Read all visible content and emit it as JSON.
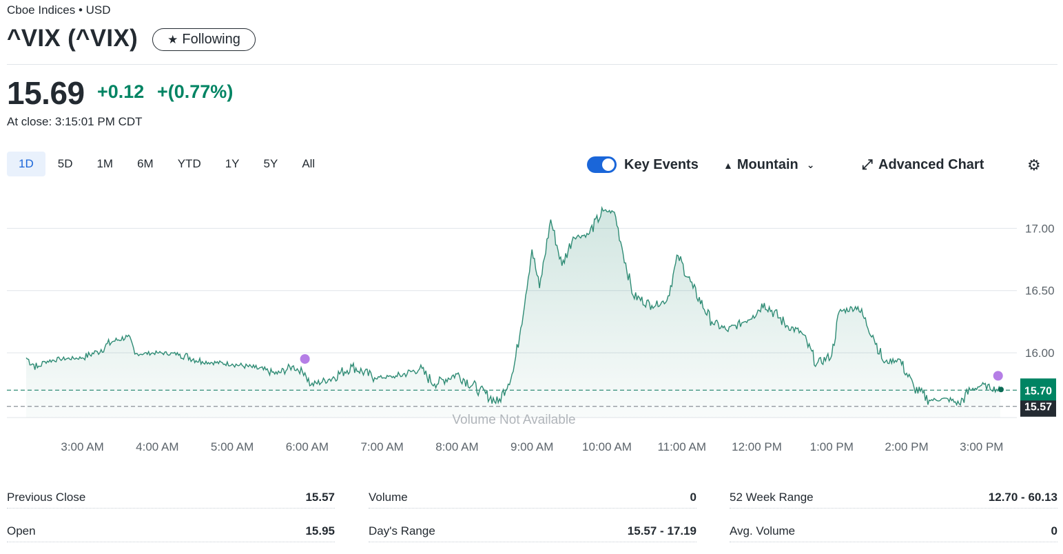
{
  "header": {
    "exchange": "Cboe Indices • USD",
    "title": "^VIX (^VIX)",
    "follow_label": "Following",
    "price": "15.69",
    "change": "+0.12",
    "change_pct": "+(0.77%)",
    "close_time": "At close: 3:15:01 PM CDT"
  },
  "ranges": [
    "1D",
    "5D",
    "1M",
    "6M",
    "YTD",
    "1Y",
    "5Y",
    "All"
  ],
  "active_range": "1D",
  "toolbar": {
    "key_events_label": "Key Events",
    "key_events_on": true,
    "chart_type_label": "Mountain",
    "advanced_label": "Advanced Chart"
  },
  "colors": {
    "accent": "#1a66d9",
    "positive": "#008463",
    "line": "#2e8b74",
    "event_dot": "#b57ee6",
    "prev_close_badge": "#232a31"
  },
  "chart_data": {
    "type": "area",
    "x_tick_labels": [
      "3:00 AM",
      "4:00 AM",
      "5:00 AM",
      "6:00 AM",
      "7:00 AM",
      "8:00 AM",
      "9:00 AM",
      "10:00 AM",
      "11:00 AM",
      "12:00 PM",
      "1:00 PM",
      "2:00 PM",
      "3:00 PM"
    ],
    "y_tick_labels": [
      "17.00",
      "16.50",
      "16.00"
    ],
    "ylim": [
      15.48,
      17.24
    ],
    "x_range_hours": [
      2.25,
      15.25
    ],
    "grid": true,
    "current_value": "15.70",
    "previous_close": "15.57",
    "volume_note": "Volume Not Available",
    "key_event_times": [
      5.97,
      15.22
    ],
    "series": [
      {
        "points": [
          [
            2.25,
            15.96
          ],
          [
            2.4,
            15.88
          ],
          [
            2.5,
            15.93
          ],
          [
            2.7,
            15.95
          ],
          [
            3.0,
            15.96
          ],
          [
            3.2,
            16.01
          ],
          [
            3.4,
            16.09
          ],
          [
            3.6,
            16.13
          ],
          [
            3.7,
            15.99
          ],
          [
            4.0,
            16.0
          ],
          [
            4.3,
            15.99
          ],
          [
            4.6,
            15.93
          ],
          [
            5.0,
            15.91
          ],
          [
            5.3,
            15.88
          ],
          [
            5.6,
            15.83
          ],
          [
            5.8,
            15.89
          ],
          [
            5.97,
            15.84
          ],
          [
            6.05,
            15.74
          ],
          [
            6.3,
            15.79
          ],
          [
            6.6,
            15.89
          ],
          [
            6.9,
            15.8
          ],
          [
            7.2,
            15.81
          ],
          [
            7.5,
            15.87
          ],
          [
            7.7,
            15.75
          ],
          [
            8.0,
            15.83
          ],
          [
            8.3,
            15.7
          ],
          [
            8.55,
            15.6
          ],
          [
            8.75,
            15.85
          ],
          [
            8.85,
            16.2
          ],
          [
            9.0,
            16.83
          ],
          [
            9.1,
            16.52
          ],
          [
            9.25,
            17.07
          ],
          [
            9.4,
            16.7
          ],
          [
            9.55,
            16.93
          ],
          [
            9.75,
            16.95
          ],
          [
            9.95,
            17.14
          ],
          [
            10.1,
            17.13
          ],
          [
            10.2,
            16.85
          ],
          [
            10.35,
            16.46
          ],
          [
            10.6,
            16.38
          ],
          [
            10.8,
            16.42
          ],
          [
            10.95,
            16.78
          ],
          [
            11.15,
            16.52
          ],
          [
            11.4,
            16.25
          ],
          [
            11.6,
            16.18
          ],
          [
            11.8,
            16.24
          ],
          [
            11.95,
            16.3
          ],
          [
            12.1,
            16.4
          ],
          [
            12.4,
            16.22
          ],
          [
            12.6,
            16.16
          ],
          [
            12.8,
            15.91
          ],
          [
            13.0,
            15.98
          ],
          [
            13.1,
            16.33
          ],
          [
            13.35,
            16.37
          ],
          [
            13.55,
            16.14
          ],
          [
            13.7,
            15.92
          ],
          [
            13.9,
            15.95
          ],
          [
            14.1,
            15.72
          ],
          [
            14.3,
            15.62
          ],
          [
            14.55,
            15.63
          ],
          [
            14.7,
            15.59
          ],
          [
            14.85,
            15.7
          ],
          [
            15.0,
            15.74
          ],
          [
            15.25,
            15.7
          ]
        ]
      }
    ]
  },
  "stats": [
    [
      {
        "label": "Previous Close",
        "value": "15.57"
      },
      {
        "label": "Open",
        "value": "15.95"
      }
    ],
    [
      {
        "label": "Volume",
        "value": "0"
      },
      {
        "label": "Day's Range",
        "value": "15.57 - 17.19"
      }
    ],
    [
      {
        "label": "52 Week Range",
        "value": "12.70 - 60.13"
      },
      {
        "label": "Avg. Volume",
        "value": "0"
      }
    ]
  ]
}
